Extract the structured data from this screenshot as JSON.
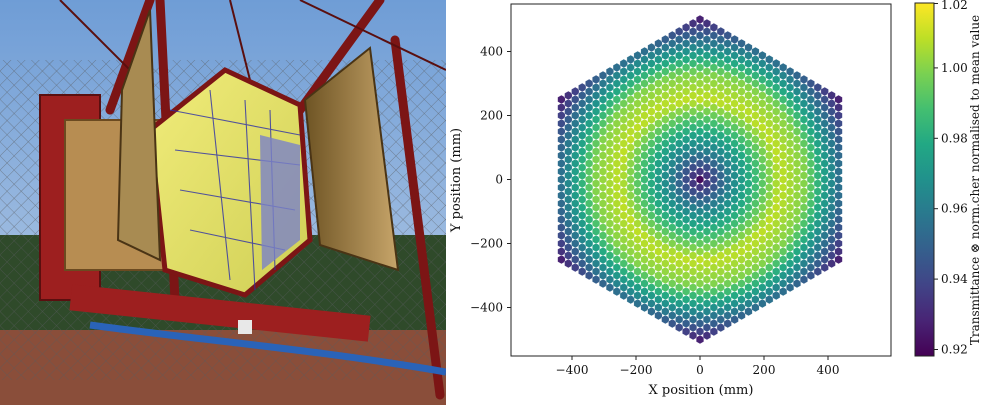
{
  "chart_data": {
    "type": "heatmap",
    "xlabel": "X position (mm)",
    "ylabel": "Y position (mm)",
    "xlim": [
      -600,
      600
    ],
    "ylim": [
      -560,
      560
    ],
    "xticks": [
      -400,
      -200,
      0,
      200,
      400
    ],
    "yticks": [
      -400,
      -200,
      0,
      200,
      400
    ],
    "xtick_labels": [
      "−400",
      "−200",
      "0",
      "200",
      "400"
    ],
    "ytick_labels": [
      "−400",
      "−200",
      "0",
      "200",
      "400"
    ],
    "colorbar": {
      "label": "Transmittance ⊗ norm.cher normalised to mean value",
      "range": [
        0.915,
        1.02
      ],
      "ticks": [
        0.92,
        0.94,
        0.96,
        0.98,
        1.0,
        1.02
      ],
      "tick_labels": [
        "0.92",
        "0.94",
        "0.96",
        "0.98",
        "1.00",
        "1.02"
      ],
      "colormap": "viridis"
    },
    "grid": false,
    "layout": {
      "shape": "hexagonal array of hexagonal pixels",
      "pixel_pitch_mm": 25,
      "outer_apothem_mm": 435,
      "outer_circumradius_mm": 500,
      "value_pattern": "radial: ~0.92 at center, ~0.96 at r≈80, ~1.01 at r≈250, ~0.93 at outer edge"
    }
  },
  "photo": {
    "description_icon": "telescope-camera-photo",
    "colors": {
      "sky": "#7fa7d8",
      "frame_red": "#8b1a1a",
      "mirror_yellow": "#e6e46a",
      "ground": "#8a4e3a",
      "fence": "#6d6f72"
    }
  }
}
